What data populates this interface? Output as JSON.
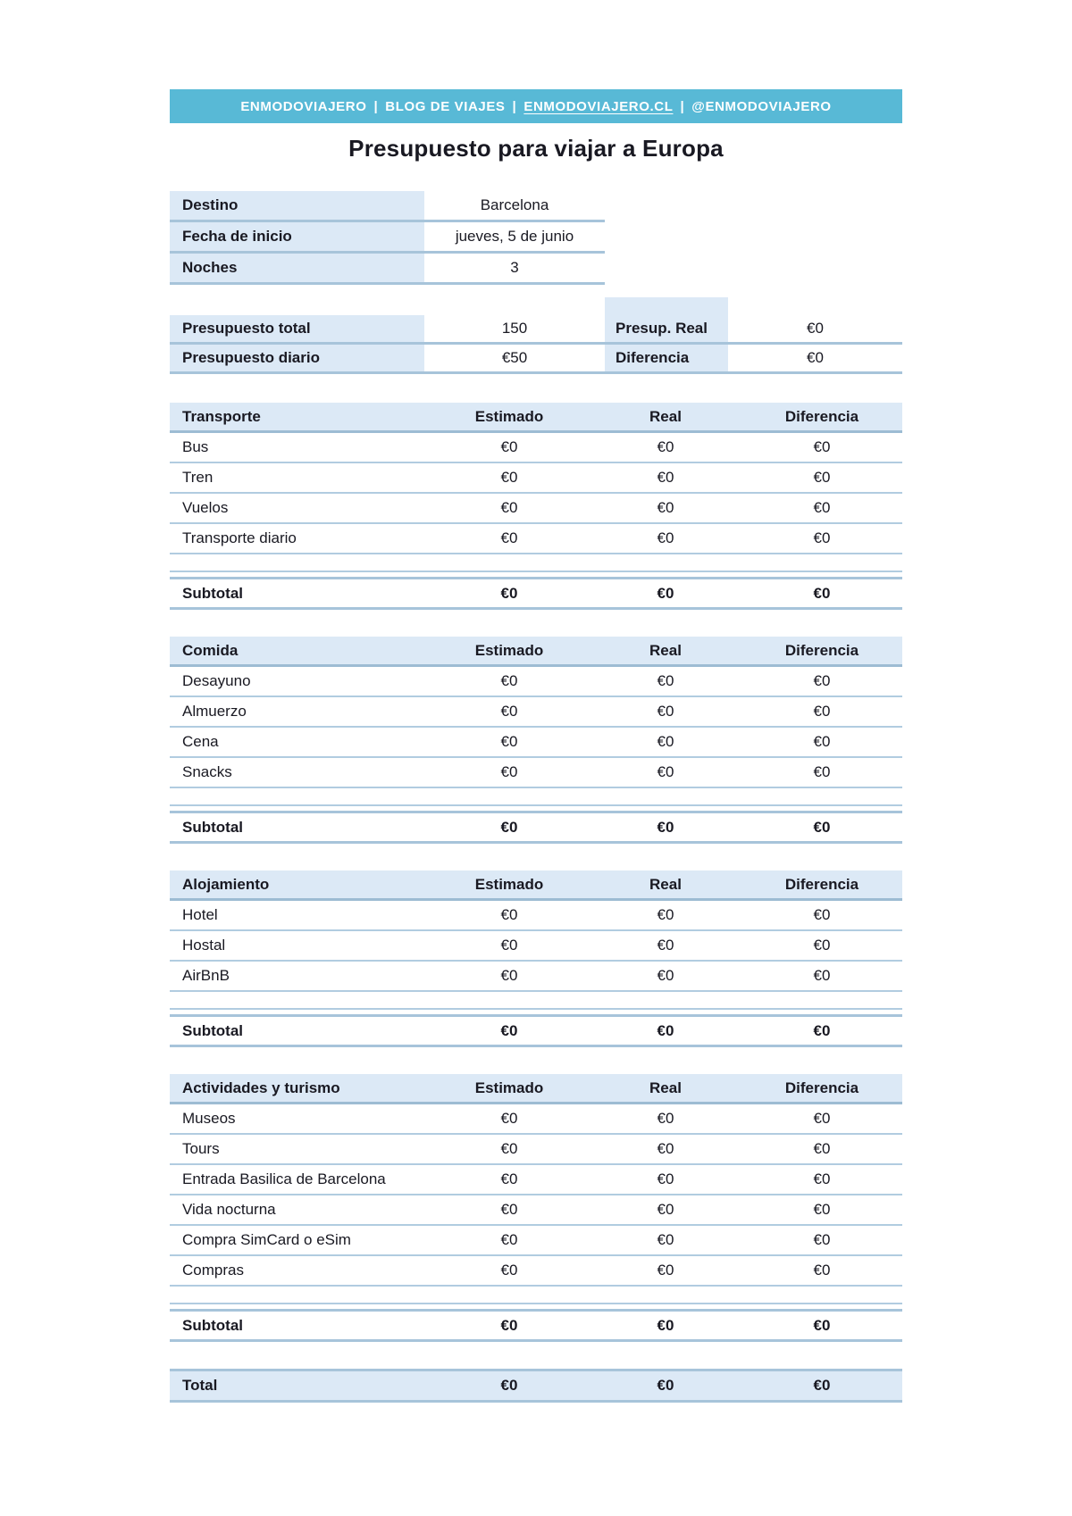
{
  "banner": {
    "separator": "|",
    "parts": [
      {
        "text": "ENMODOVIAJERO",
        "link": false
      },
      {
        "text": "BLOG DE VIAJES",
        "link": false
      },
      {
        "text": "ENMODOVIAJERO.CL",
        "link": true
      },
      {
        "text": "@ENMODOVIAJERO",
        "link": false
      }
    ]
  },
  "title": "Presupuesto para viajar a Europa",
  "trip_info": {
    "rows": [
      {
        "label": "Destino",
        "value": "Barcelona"
      },
      {
        "label": "Fecha de inicio",
        "value": "jueves, 5 de junio"
      },
      {
        "label": "Noches",
        "value": "3"
      }
    ]
  },
  "budget_summary": {
    "rows": [
      {
        "label_left": "Presupuesto total",
        "value_left": "150",
        "label_right": "Presup. Real",
        "value_right": "€0"
      },
      {
        "label_left": "Presupuesto diario",
        "value_left": "€50",
        "label_right": "Diferencia",
        "value_right": "€0"
      }
    ]
  },
  "columns": [
    "Estimado",
    "Real",
    "Diferencia"
  ],
  "subtotal_label": "Subtotal",
  "sections": [
    {
      "name": "Transporte",
      "items": [
        {
          "label": "Bus",
          "values": [
            "€0",
            "€0",
            "€0"
          ]
        },
        {
          "label": "Tren",
          "values": [
            "€0",
            "€0",
            "€0"
          ]
        },
        {
          "label": "Vuelos",
          "values": [
            "€0",
            "€0",
            "€0"
          ]
        },
        {
          "label": "Transporte diario",
          "values": [
            "€0",
            "€0",
            "€0"
          ]
        }
      ],
      "subtotal": {
        "values": [
          "€0",
          "€0",
          "€0"
        ]
      }
    },
    {
      "name": "Comida",
      "items": [
        {
          "label": "Desayuno",
          "values": [
            "€0",
            "€0",
            "€0"
          ]
        },
        {
          "label": "Almuerzo",
          "values": [
            "€0",
            "€0",
            "€0"
          ]
        },
        {
          "label": "Cena",
          "values": [
            "€0",
            "€0",
            "€0"
          ]
        },
        {
          "label": "Snacks",
          "values": [
            "€0",
            "€0",
            "€0"
          ]
        }
      ],
      "subtotal": {
        "values": [
          "€0",
          "€0",
          "€0"
        ]
      }
    },
    {
      "name": "Alojamiento",
      "items": [
        {
          "label": "Hotel",
          "values": [
            "€0",
            "€0",
            "€0"
          ]
        },
        {
          "label": "Hostal",
          "values": [
            "€0",
            "€0",
            "€0"
          ]
        },
        {
          "label": "AirBnB",
          "values": [
            "€0",
            "€0",
            "€0"
          ]
        }
      ],
      "subtotal": {
        "values": [
          "€0",
          "€0",
          "€0"
        ]
      }
    },
    {
      "name": "Actividades y turismo",
      "items": [
        {
          "label": "Museos",
          "values": [
            "€0",
            "€0",
            "€0"
          ]
        },
        {
          "label": "Tours",
          "values": [
            "€0",
            "€0",
            "€0"
          ]
        },
        {
          "label": "Entrada Basilica de Barcelona",
          "values": [
            "€0",
            "€0",
            "€0"
          ]
        },
        {
          "label": "Vida nocturna",
          "values": [
            "€0",
            "€0",
            "€0"
          ]
        },
        {
          "label": "Compra SimCard o eSim",
          "values": [
            "€0",
            "€0",
            "€0"
          ]
        },
        {
          "label": "Compras",
          "values": [
            "€0",
            "€0",
            "€0"
          ]
        }
      ],
      "subtotal": {
        "values": [
          "€0",
          "€0",
          "€0"
        ]
      }
    }
  ],
  "total": {
    "label": "Total",
    "values": [
      "€0",
      "€0",
      "€0"
    ]
  },
  "colors": {
    "banner_accent": "#58b9d6",
    "cell_blue": "#dce9f6",
    "row_border": "#a7c4da",
    "text": "#191922"
  }
}
